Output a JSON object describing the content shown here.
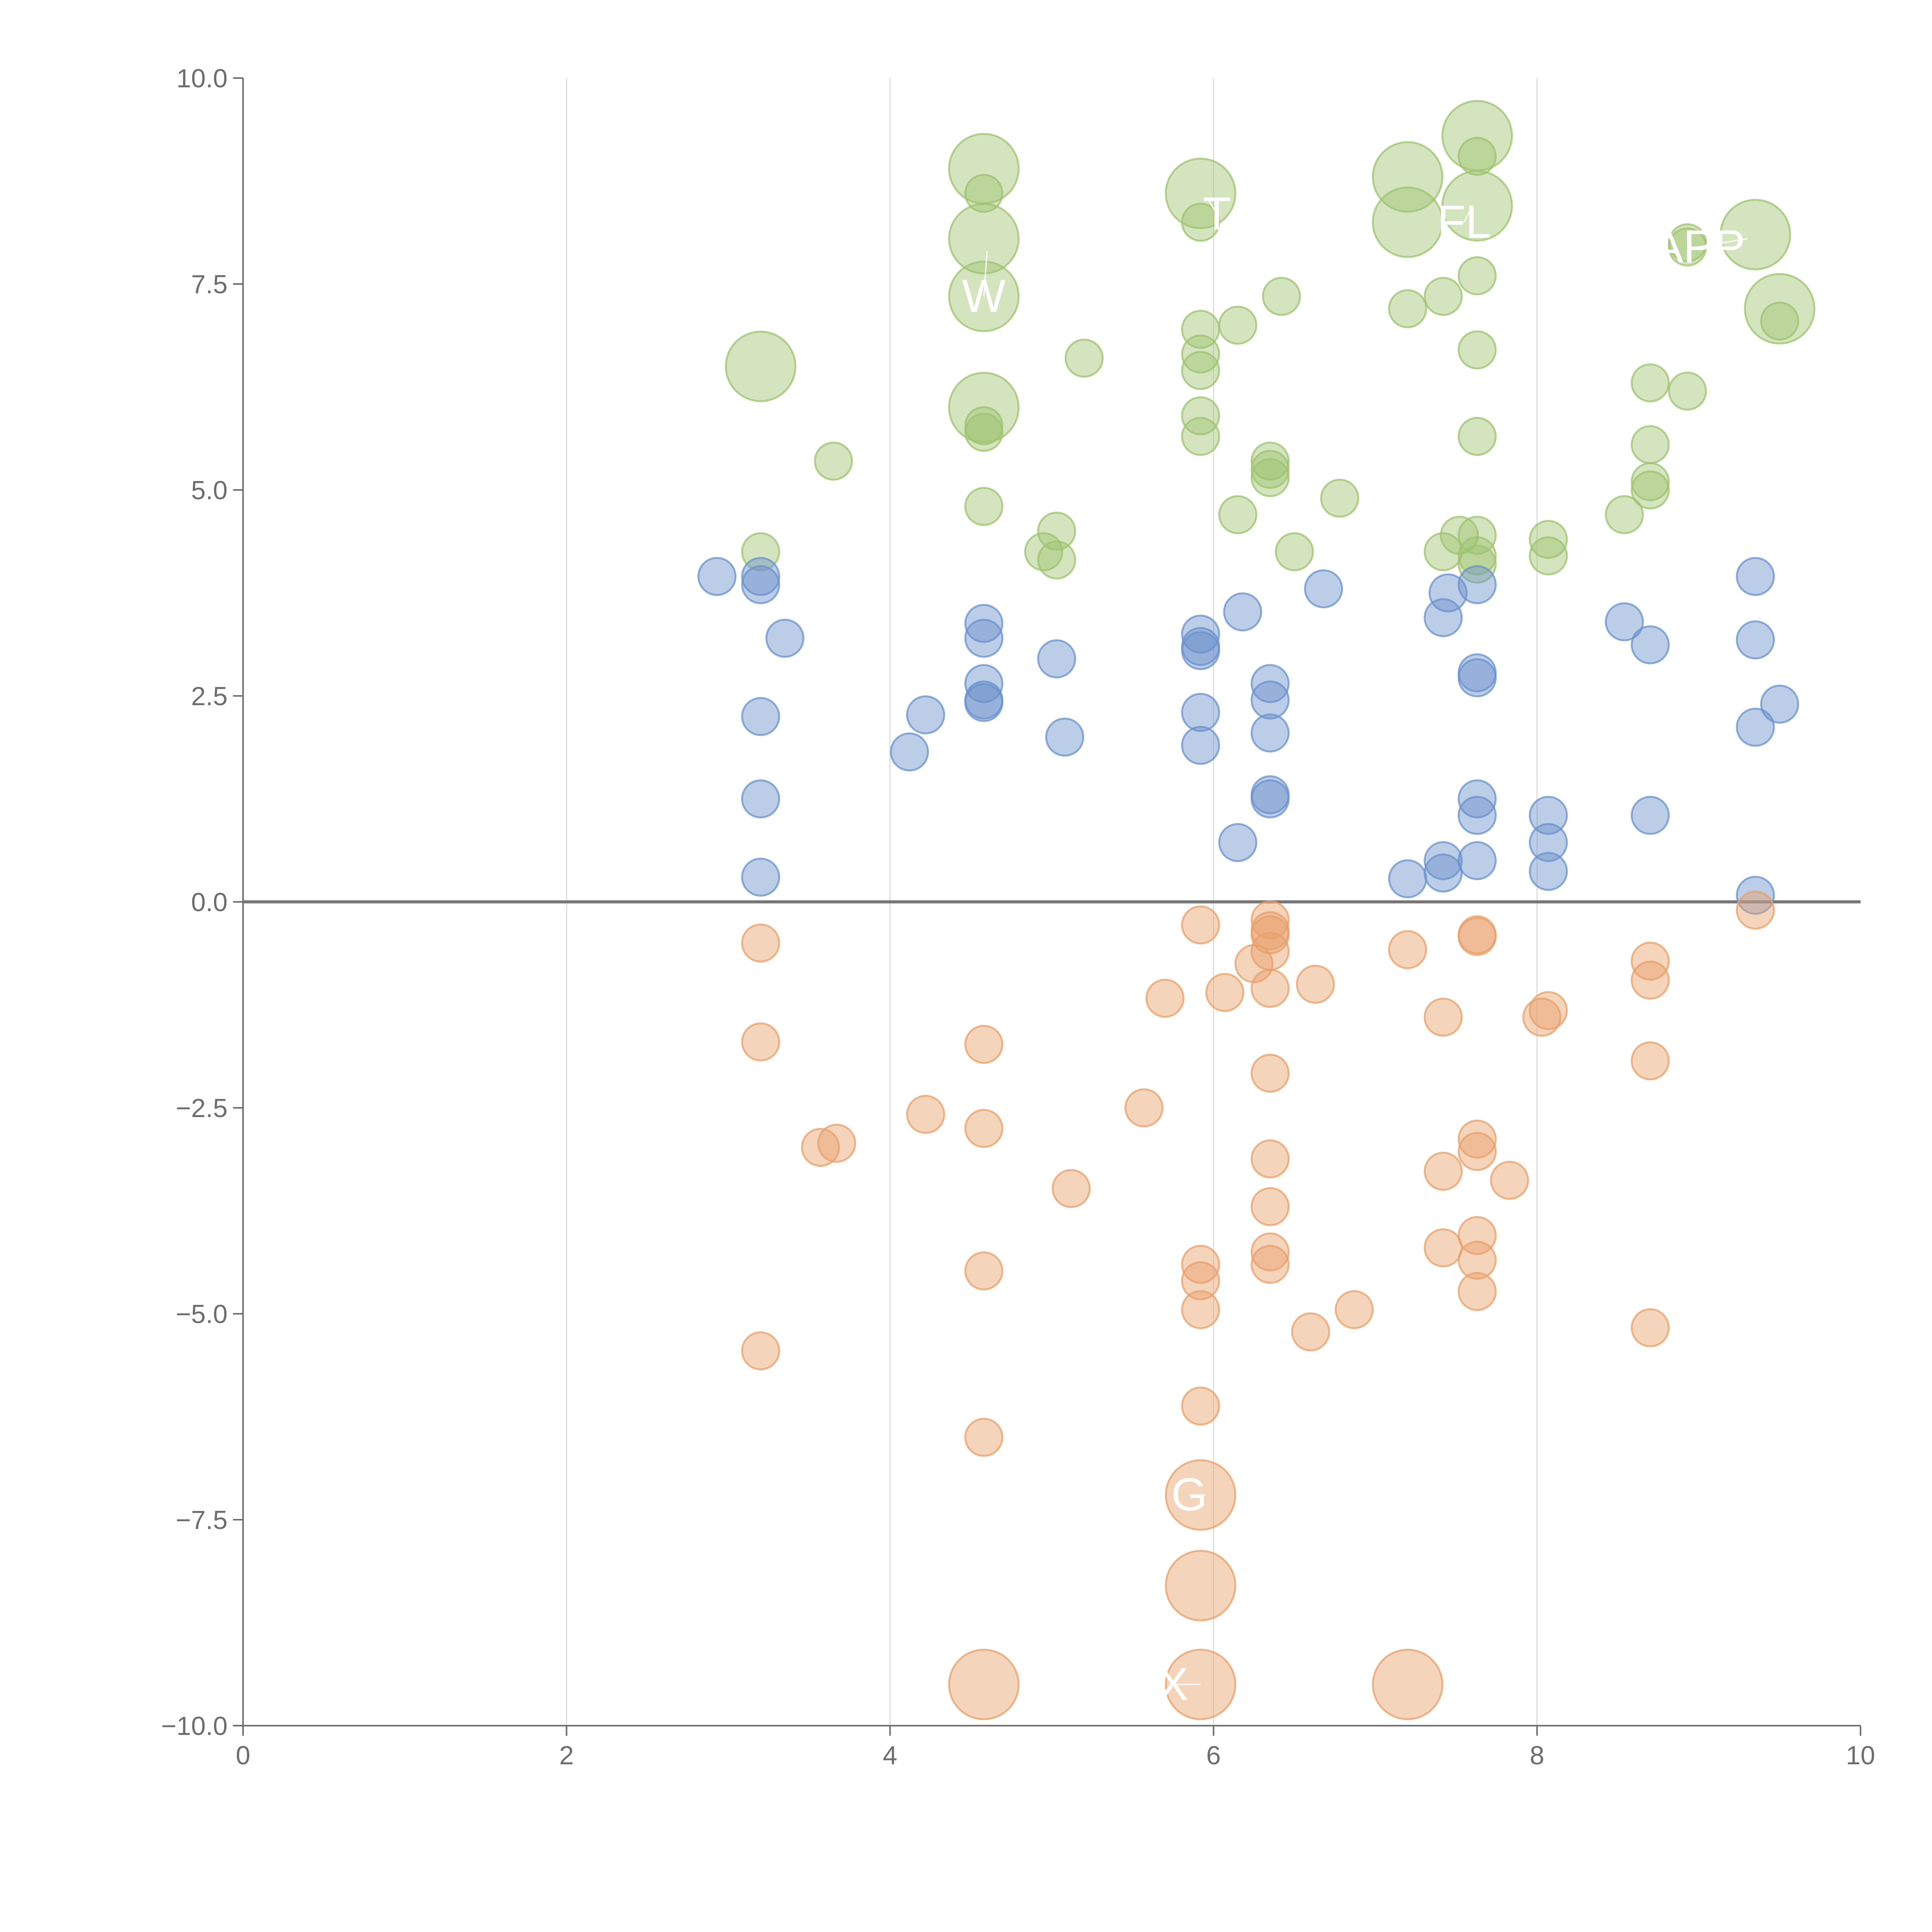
{
  "chart_data": {
    "type": "scatter",
    "title": "",
    "xlabel": "",
    "ylabel": "",
    "xlim": [
      0,
      10
    ],
    "ylim": [
      -10,
      10
    ],
    "x_ticks": [
      0,
      2,
      4,
      6,
      8,
      10
    ],
    "x_tick_labels": [
      "0",
      "2",
      "4",
      "6",
      "8",
      "10"
    ],
    "y_ticks": [
      10,
      7.5,
      5,
      2.5,
      0,
      -2.5,
      -5,
      -7.5,
      -10
    ],
    "y_tick_labels": [
      "10.0",
      "7.5",
      "5.0",
      "2.5",
      "0.0",
      "−2.5",
      "−5.0",
      "−7.5",
      "−10.0"
    ],
    "vertical_gridlines_at": [
      2,
      4,
      6,
      8
    ],
    "horizontal_line_at": 0,
    "colors": {
      "green": "#9dc36f",
      "blue": "#6a91cc",
      "orange": "#e8a06a",
      "text": "#6e6e6e",
      "grid": "#dcdcdc"
    },
    "series": [
      {
        "name": "green",
        "color": "#9dc36f",
        "points": [
          {
            "x": 3.2,
            "y": 4.25,
            "s": 1
          },
          {
            "x": 3.65,
            "y": 5.35,
            "s": 1
          },
          {
            "x": 4.58,
            "y": 8.6,
            "s": 1
          },
          {
            "x": 4.58,
            "y": 5.7,
            "s": 1
          },
          {
            "x": 4.58,
            "y": 5.78,
            "s": 1
          },
          {
            "x": 4.58,
            "y": 4.8,
            "s": 1
          },
          {
            "x": 4.95,
            "y": 4.25,
            "s": 1
          },
          {
            "x": 5.03,
            "y": 4.5,
            "s": 1
          },
          {
            "x": 5.03,
            "y": 4.15,
            "s": 1
          },
          {
            "x": 5.2,
            "y": 6.6,
            "s": 1
          },
          {
            "x": 5.92,
            "y": 8.25,
            "s": 1
          },
          {
            "x": 5.92,
            "y": 6.95,
            "s": 1
          },
          {
            "x": 5.92,
            "y": 6.65,
            "s": 1
          },
          {
            "x": 5.92,
            "y": 6.45,
            "s": 1
          },
          {
            "x": 5.92,
            "y": 5.9,
            "s": 1
          },
          {
            "x": 5.92,
            "y": 5.65,
            "s": 1
          },
          {
            "x": 6.15,
            "y": 4.7,
            "s": 1
          },
          {
            "x": 6.15,
            "y": 7.0,
            "s": 1
          },
          {
            "x": 6.35,
            "y": 5.35,
            "s": 1
          },
          {
            "x": 6.35,
            "y": 5.25,
            "s": 1
          },
          {
            "x": 6.35,
            "y": 5.15,
            "s": 1
          },
          {
            "x": 6.42,
            "y": 7.35,
            "s": 1
          },
          {
            "x": 6.5,
            "y": 4.25,
            "s": 1
          },
          {
            "x": 6.78,
            "y": 4.9,
            "s": 1
          },
          {
            "x": 7.2,
            "y": 7.2,
            "s": 1
          },
          {
            "x": 7.42,
            "y": 7.35,
            "s": 1
          },
          {
            "x": 7.42,
            "y": 4.25,
            "s": 1
          },
          {
            "x": 7.52,
            "y": 4.45,
            "s": 1
          },
          {
            "x": 7.63,
            "y": 9.05,
            "s": 1
          },
          {
            "x": 7.63,
            "y": 7.6,
            "s": 1
          },
          {
            "x": 7.63,
            "y": 6.7,
            "s": 1
          },
          {
            "x": 7.63,
            "y": 5.65,
            "s": 1
          },
          {
            "x": 7.63,
            "y": 4.45,
            "s": 1
          },
          {
            "x": 7.63,
            "y": 4.2,
            "s": 1
          },
          {
            "x": 7.63,
            "y": 4.1,
            "s": 1
          },
          {
            "x": 8.07,
            "y": 4.4,
            "s": 1
          },
          {
            "x": 8.07,
            "y": 4.2,
            "s": 1
          },
          {
            "x": 8.54,
            "y": 4.7,
            "s": 1
          },
          {
            "x": 8.7,
            "y": 6.3,
            "s": 1
          },
          {
            "x": 8.7,
            "y": 5.55,
            "s": 1
          },
          {
            "x": 8.7,
            "y": 5.1,
            "s": 1
          },
          {
            "x": 8.7,
            "y": 5.0,
            "s": 1
          },
          {
            "x": 8.93,
            "y": 7.95,
            "s": 1
          },
          {
            "x": 8.93,
            "y": 8.0,
            "s": 1
          },
          {
            "x": 8.93,
            "y": 6.2,
            "s": 1
          },
          {
            "x": 9.5,
            "y": 7.05,
            "s": 1
          },
          {
            "x": 3.2,
            "y": 6.5,
            "s": 2
          },
          {
            "x": 4.58,
            "y": 8.9,
            "s": 2
          },
          {
            "x": 4.58,
            "y": 8.05,
            "s": 2
          },
          {
            "x": 4.58,
            "y": 7.35,
            "s": 2
          },
          {
            "x": 4.58,
            "y": 6.0,
            "s": 2
          },
          {
            "x": 5.92,
            "y": 8.6,
            "s": 2
          },
          {
            "x": 7.2,
            "y": 8.8,
            "s": 2
          },
          {
            "x": 7.2,
            "y": 8.25,
            "s": 2
          },
          {
            "x": 7.63,
            "y": 9.3,
            "s": 2
          },
          {
            "x": 7.63,
            "y": 8.45,
            "s": 2
          },
          {
            "x": 9.35,
            "y": 8.1,
            "s": 2
          },
          {
            "x": 9.5,
            "y": 7.2,
            "s": 2
          }
        ]
      },
      {
        "name": "blue",
        "color": "#6a91cc",
        "points": [
          {
            "x": 2.93,
            "y": 3.95,
            "s": 1
          },
          {
            "x": 3.2,
            "y": 3.95,
            "s": 1
          },
          {
            "x": 3.2,
            "y": 3.85,
            "s": 1
          },
          {
            "x": 3.2,
            "y": 2.25,
            "s": 1
          },
          {
            "x": 3.2,
            "y": 1.25,
            "s": 1
          },
          {
            "x": 3.2,
            "y": 0.3,
            "s": 1
          },
          {
            "x": 3.35,
            "y": 3.2,
            "s": 1
          },
          {
            "x": 4.12,
            "y": 1.82,
            "s": 1
          },
          {
            "x": 4.22,
            "y": 2.27,
            "s": 1
          },
          {
            "x": 4.58,
            "y": 3.38,
            "s": 1
          },
          {
            "x": 4.58,
            "y": 3.2,
            "s": 1
          },
          {
            "x": 4.58,
            "y": 2.65,
            "s": 1
          },
          {
            "x": 4.58,
            "y": 2.45,
            "s": 1
          },
          {
            "x": 4.58,
            "y": 2.42,
            "s": 1
          },
          {
            "x": 5.03,
            "y": 2.95,
            "s": 1
          },
          {
            "x": 5.08,
            "y": 2.0,
            "s": 1
          },
          {
            "x": 5.92,
            "y": 3.25,
            "s": 1
          },
          {
            "x": 5.92,
            "y": 3.1,
            "s": 1
          },
          {
            "x": 5.92,
            "y": 3.05,
            "s": 1
          },
          {
            "x": 5.92,
            "y": 2.3,
            "s": 1
          },
          {
            "x": 5.92,
            "y": 1.9,
            "s": 1
          },
          {
            "x": 6.15,
            "y": 0.72,
            "s": 1
          },
          {
            "x": 6.18,
            "y": 3.52,
            "s": 1
          },
          {
            "x": 6.35,
            "y": 2.65,
            "s": 1
          },
          {
            "x": 6.35,
            "y": 2.45,
            "s": 1
          },
          {
            "x": 6.35,
            "y": 2.05,
            "s": 1
          },
          {
            "x": 6.35,
            "y": 1.3,
            "s": 1
          },
          {
            "x": 6.35,
            "y": 1.25,
            "s": 1
          },
          {
            "x": 6.68,
            "y": 3.8,
            "s": 1
          },
          {
            "x": 7.2,
            "y": 0.28,
            "s": 1
          },
          {
            "x": 7.42,
            "y": 3.45,
            "s": 1
          },
          {
            "x": 7.45,
            "y": 3.75,
            "s": 1
          },
          {
            "x": 7.42,
            "y": 0.5,
            "s": 1
          },
          {
            "x": 7.42,
            "y": 0.35,
            "s": 1
          },
          {
            "x": 7.63,
            "y": 3.85,
            "s": 1
          },
          {
            "x": 7.63,
            "y": 2.78,
            "s": 1
          },
          {
            "x": 7.63,
            "y": 2.72,
            "s": 1
          },
          {
            "x": 7.63,
            "y": 1.25,
            "s": 1
          },
          {
            "x": 7.63,
            "y": 1.05,
            "s": 1
          },
          {
            "x": 7.63,
            "y": 0.5,
            "s": 1
          },
          {
            "x": 8.07,
            "y": 1.05,
            "s": 1
          },
          {
            "x": 8.07,
            "y": 0.72,
            "s": 1
          },
          {
            "x": 8.07,
            "y": 0.37,
            "s": 1
          },
          {
            "x": 8.54,
            "y": 3.4,
            "s": 1
          },
          {
            "x": 8.7,
            "y": 3.12,
            "s": 1
          },
          {
            "x": 8.7,
            "y": 1.05,
            "s": 1
          },
          {
            "x": 9.35,
            "y": 3.95,
            "s": 1
          },
          {
            "x": 9.35,
            "y": 3.18,
            "s": 1
          },
          {
            "x": 9.35,
            "y": 2.12,
            "s": 1
          },
          {
            "x": 9.5,
            "y": 2.4,
            "s": 1
          },
          {
            "x": 9.35,
            "y": 0.08,
            "s": 1
          }
        ]
      },
      {
        "name": "orange",
        "color": "#e8a06a",
        "points": [
          {
            "x": 3.2,
            "y": -0.5,
            "s": 1
          },
          {
            "x": 3.2,
            "y": -1.7,
            "s": 1
          },
          {
            "x": 3.2,
            "y": -5.45,
            "s": 1
          },
          {
            "x": 3.57,
            "y": -2.98,
            "s": 1
          },
          {
            "x": 3.67,
            "y": -2.93,
            "s": 1
          },
          {
            "x": 4.22,
            "y": -2.58,
            "s": 1
          },
          {
            "x": 4.58,
            "y": -1.73,
            "s": 1
          },
          {
            "x": 4.58,
            "y": -2.75,
            "s": 1
          },
          {
            "x": 4.58,
            "y": -4.48,
            "s": 1
          },
          {
            "x": 4.58,
            "y": -6.5,
            "s": 1
          },
          {
            "x": 5.12,
            "y": -3.48,
            "s": 1
          },
          {
            "x": 5.57,
            "y": -2.5,
            "s": 1
          },
          {
            "x": 5.7,
            "y": -1.17,
            "s": 1
          },
          {
            "x": 5.92,
            "y": -0.28,
            "s": 1
          },
          {
            "x": 5.92,
            "y": -4.4,
            "s": 1
          },
          {
            "x": 5.92,
            "y": -4.6,
            "s": 1
          },
          {
            "x": 5.92,
            "y": -4.95,
            "s": 1
          },
          {
            "x": 5.92,
            "y": -6.12,
            "s": 1
          },
          {
            "x": 6.07,
            "y": -1.1,
            "s": 1
          },
          {
            "x": 6.25,
            "y": -0.75,
            "s": 1
          },
          {
            "x": 6.35,
            "y": -0.22,
            "s": 1
          },
          {
            "x": 6.35,
            "y": -0.4,
            "s": 1
          },
          {
            "x": 6.35,
            "y": -0.6,
            "s": 1
          },
          {
            "x": 6.35,
            "y": -1.05,
            "s": 1
          },
          {
            "x": 6.35,
            "y": -2.08,
            "s": 1
          },
          {
            "x": 6.35,
            "y": -3.12,
            "s": 1
          },
          {
            "x": 6.35,
            "y": -3.7,
            "s": 1
          },
          {
            "x": 6.35,
            "y": -4.25,
            "s": 1
          },
          {
            "x": 6.35,
            "y": -4.4,
            "s": 1
          },
          {
            "x": 6.35,
            "y": -0.35,
            "s": 1
          },
          {
            "x": 6.6,
            "y": -5.22,
            "s": 1
          },
          {
            "x": 6.63,
            "y": -1.0,
            "s": 1
          },
          {
            "x": 6.87,
            "y": -4.95,
            "s": 1
          },
          {
            "x": 7.2,
            "y": -0.58,
            "s": 1
          },
          {
            "x": 7.42,
            "y": -1.4,
            "s": 1
          },
          {
            "x": 7.42,
            "y": -3.27,
            "s": 1
          },
          {
            "x": 7.42,
            "y": -4.2,
            "s": 1
          },
          {
            "x": 7.63,
            "y": -0.4,
            "s": 1
          },
          {
            "x": 7.63,
            "y": -0.42,
            "s": 1
          },
          {
            "x": 7.63,
            "y": -2.88,
            "s": 1
          },
          {
            "x": 7.63,
            "y": -3.03,
            "s": 1
          },
          {
            "x": 7.63,
            "y": -4.05,
            "s": 1
          },
          {
            "x": 7.63,
            "y": -4.35,
            "s": 1
          },
          {
            "x": 7.63,
            "y": -4.73,
            "s": 1
          },
          {
            "x": 7.83,
            "y": -3.38,
            "s": 1
          },
          {
            "x": 8.03,
            "y": -1.4,
            "s": 1
          },
          {
            "x": 8.07,
            "y": -1.32,
            "s": 1
          },
          {
            "x": 8.7,
            "y": -0.72,
            "s": 1
          },
          {
            "x": 8.7,
            "y": -0.95,
            "s": 1
          },
          {
            "x": 8.7,
            "y": -1.93,
            "s": 1
          },
          {
            "x": 8.7,
            "y": -5.17,
            "s": 1
          },
          {
            "x": 9.35,
            "y": -0.1,
            "s": 1
          },
          {
            "x": 5.92,
            "y": -7.2,
            "s": 2
          },
          {
            "x": 5.92,
            "y": -8.3,
            "s": 2
          },
          {
            "x": 4.58,
            "y": -9.5,
            "s": 2
          },
          {
            "x": 5.92,
            "y": -9.5,
            "s": 2
          },
          {
            "x": 7.2,
            "y": -9.5,
            "s": 2
          }
        ]
      }
    ],
    "annotations": [
      {
        "text": "T",
        "x": 6.02,
        "y": 8.35,
        "ax": 5.96,
        "ay": 8.55
      },
      {
        "text": "FL",
        "x": 7.55,
        "y": 8.25,
        "ax": 7.6,
        "ay": 8.45
      },
      {
        "text": "APP",
        "x": 9.0,
        "y": 7.95,
        "ax": 9.3,
        "ay": 8.05
      },
      {
        "text": "W",
        "x": 4.58,
        "y": 7.35,
        "ax": 4.6,
        "ay": 7.9
      },
      {
        "text": "G",
        "x": 5.85,
        "y": -7.2,
        "ax": 5.95,
        "ay": -7.2
      },
      {
        "text": "X",
        "x": 5.75,
        "y": -9.5,
        "ax": 5.92,
        "ay": -9.5
      }
    ]
  }
}
